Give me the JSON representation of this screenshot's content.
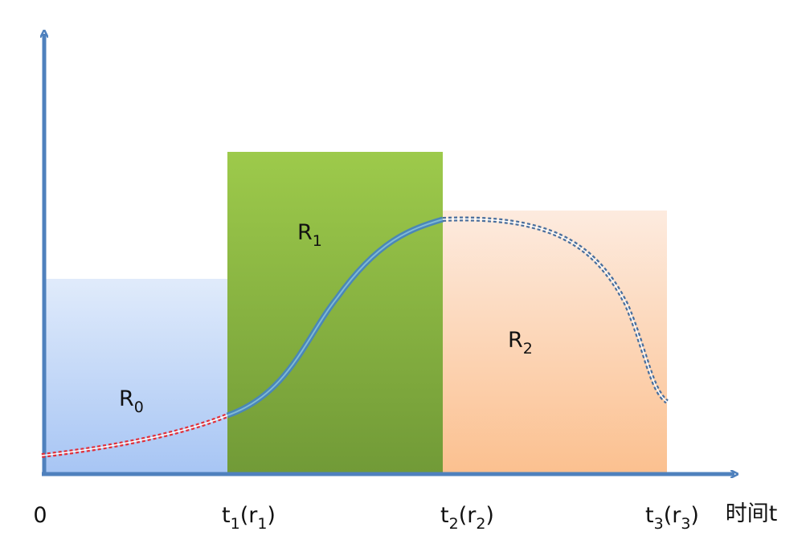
{
  "regions": [
    {
      "segments": [
        {
          "text": "R"
        },
        {
          "text": "0",
          "sub": true
        }
      ]
    },
    {
      "segments": [
        {
          "text": "R"
        },
        {
          "text": "1",
          "sub": true
        }
      ]
    },
    {
      "segments": [
        {
          "text": "R"
        },
        {
          "text": "2",
          "sub": true
        }
      ]
    }
  ],
  "x_labels": [
    {
      "segments": [
        {
          "text": "0"
        }
      ]
    },
    {
      "segments": [
        {
          "text": "t"
        },
        {
          "text": "1",
          "sub": true
        },
        {
          "text": "(r"
        },
        {
          "text": "1",
          "sub": true
        },
        {
          "text": ")"
        }
      ]
    },
    {
      "segments": [
        {
          "text": "t"
        },
        {
          "text": "2",
          "sub": true
        },
        {
          "text": "(r"
        },
        {
          "text": "2",
          "sub": true
        },
        {
          "text": ")"
        }
      ]
    },
    {
      "segments": [
        {
          "text": "t"
        },
        {
          "text": "3",
          "sub": true
        },
        {
          "text": "(r"
        },
        {
          "text": "3",
          "sub": true
        },
        {
          "text": ")"
        }
      ]
    }
  ],
  "x_axis_label": "时间t"
}
